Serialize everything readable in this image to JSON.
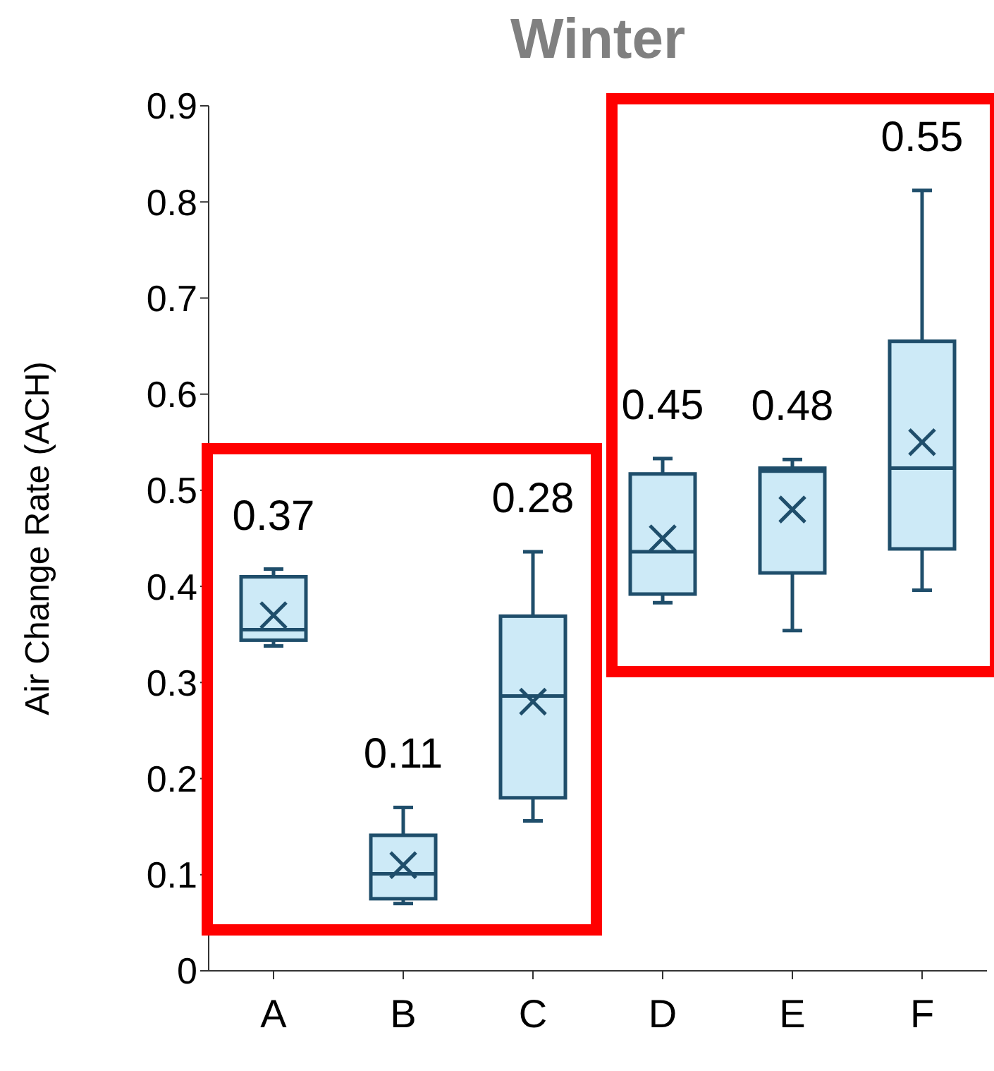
{
  "chart_data": {
    "type": "box",
    "title": "Winter",
    "ylabel": "Air Change Rate (ACH)",
    "categories": [
      "A",
      "B",
      "C",
      "D",
      "E",
      "F"
    ],
    "color": "#cdeaf7",
    "ylim": [
      0,
      0.9
    ],
    "yticks": [
      0,
      0.1,
      0.2,
      0.3,
      0.4,
      0.5,
      0.6,
      0.7,
      0.8,
      0.9
    ],
    "annotations": [
      "0.37",
      "0.11",
      "0.28",
      "0.45",
      "0.48",
      "0.55"
    ],
    "boxes": [
      {
        "low": 0.338,
        "q1": 0.344,
        "median": 0.355,
        "q3": 0.41,
        "high": 0.418,
        "mean": 0.37
      },
      {
        "low": 0.07,
        "q1": 0.075,
        "median": 0.101,
        "q3": 0.141,
        "high": 0.17,
        "mean": 0.11
      },
      {
        "low": 0.156,
        "q1": 0.18,
        "median": 0.286,
        "q3": 0.369,
        "high": 0.436,
        "mean": 0.28
      },
      {
        "low": 0.383,
        "q1": 0.392,
        "median": 0.436,
        "q3": 0.517,
        "high": 0.533,
        "mean": 0.45
      },
      {
        "low": 0.354,
        "q1": 0.414,
        "median": 0.52,
        "q3": 0.523,
        "high": 0.532,
        "mean": 0.48
      },
      {
        "low": 0.396,
        "q1": 0.439,
        "median": 0.523,
        "q3": 0.655,
        "high": 0.812,
        "mean": 0.55
      }
    ]
  }
}
